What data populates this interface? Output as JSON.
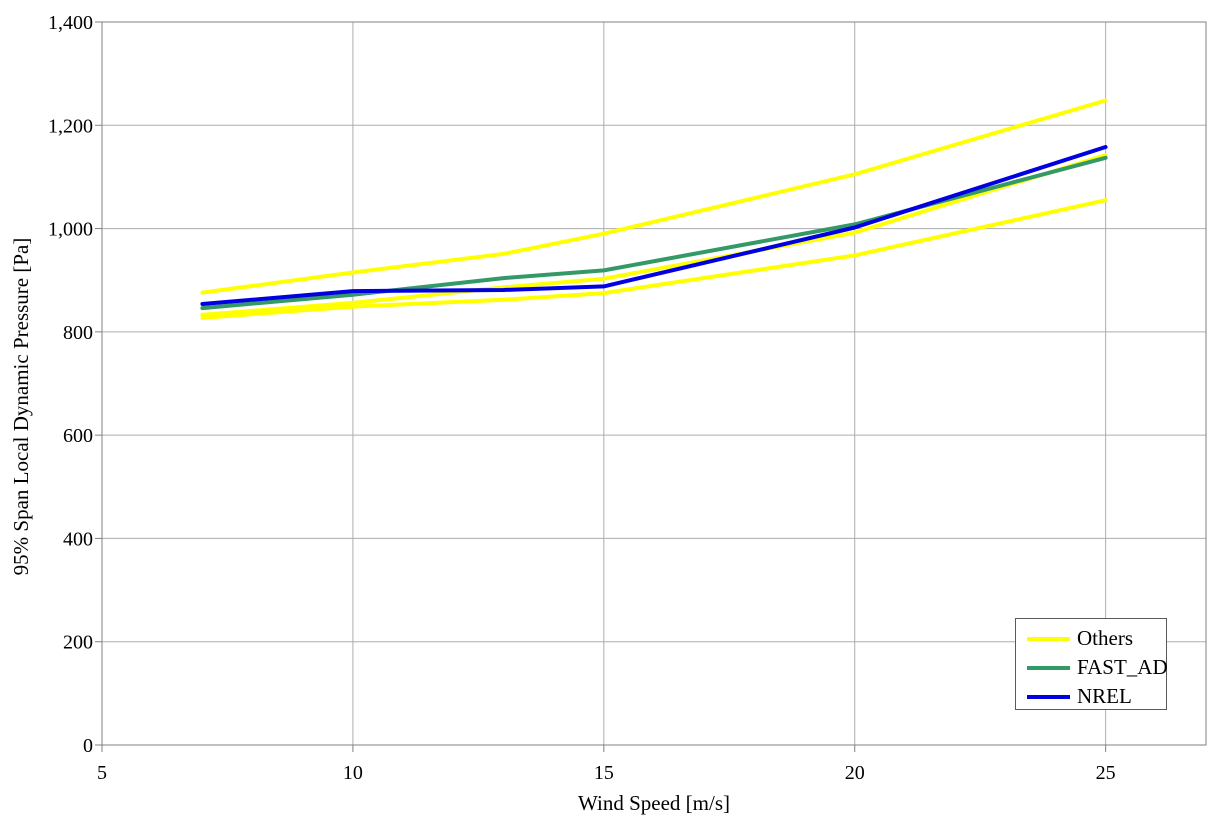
{
  "chart_data": {
    "type": "line",
    "xlabel": "Wind Speed [m/s]",
    "ylabel": "95% Span Local Dynamic Pressure [Pa]",
    "xlim": [
      5,
      27
    ],
    "ylim": [
      0,
      1400
    ],
    "x_ticks": [
      5,
      10,
      15,
      20,
      25
    ],
    "x_tick_labels": [
      "5",
      "10",
      "15",
      "20",
      "25"
    ],
    "y_ticks": [
      0,
      200,
      400,
      600,
      800,
      1000,
      1200,
      1400
    ],
    "y_tick_labels": [
      "0",
      "200",
      "400",
      "600",
      "800",
      "1,000",
      "1,200",
      "1,400"
    ],
    "grid": true,
    "grid_color": "#adadad",
    "frame_color": "#808080",
    "x": [
      7,
      10,
      13,
      15,
      20,
      25
    ],
    "series": [
      {
        "name": "Others (upper)",
        "legend": "Others",
        "color": "#ffff00",
        "values": [
          876,
          915,
          951,
          990,
          1105,
          1248
        ]
      },
      {
        "name": "Others (middle)",
        "legend": "Others",
        "color": "#ffff00",
        "values": [
          833,
          856,
          886,
          903,
          992,
          1142
        ]
      },
      {
        "name": "Others (lower)",
        "legend": "Others",
        "color": "#ffff00",
        "values": [
          827,
          849,
          862,
          875,
          948,
          1055
        ]
      },
      {
        "name": "FAST_AD",
        "legend": "FAST_AD",
        "color": "#339966",
        "values": [
          846,
          872,
          904,
          919,
          1008,
          1137
        ]
      },
      {
        "name": "NREL",
        "legend": "NREL",
        "color": "#0000e0",
        "values": [
          854,
          879,
          881,
          888,
          1002,
          1158
        ]
      }
    ],
    "legend": {
      "position": "bottom-right",
      "items": [
        {
          "label": "Others",
          "color": "#ffff00"
        },
        {
          "label": "FAST_AD",
          "color": "#339966"
        },
        {
          "label": "NREL",
          "color": "#0000e0"
        }
      ]
    }
  }
}
